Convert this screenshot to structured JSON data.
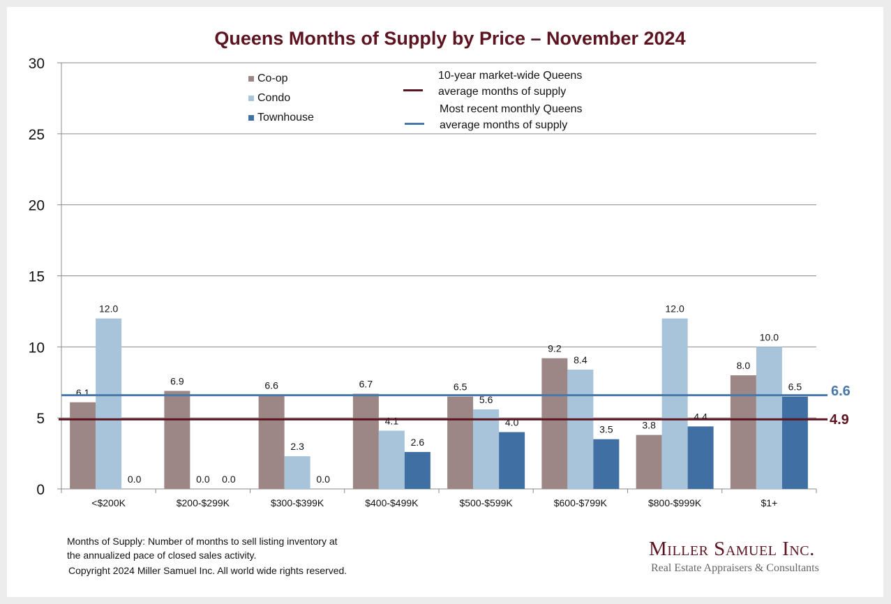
{
  "chart_data": {
    "type": "bar",
    "title": "Queens Months of Supply by Price – November 2024",
    "xlabel": "",
    "ylabel": "",
    "ylim": [
      0,
      30
    ],
    "yticks": [
      "0",
      "5",
      "10",
      "15",
      "20",
      "25",
      "30"
    ],
    "ytick_values": [
      0,
      5,
      10,
      15,
      20,
      25,
      30
    ],
    "grid": true,
    "legend_position": "top-center",
    "categories": [
      "<$200K",
      "$200-$299K",
      "$300-$399K",
      "$400-$499K",
      "$500-$599K",
      "$600-$799K",
      "$800-$999K",
      "$1+"
    ],
    "series": [
      {
        "name": "Co-op",
        "color": "#9c8786",
        "values": [
          6.1,
          6.9,
          6.6,
          6.7,
          6.5,
          9.2,
          3.8,
          8.0
        ],
        "labels": [
          "6.1",
          "6.9",
          "6.6",
          "6.7",
          "6.5",
          "9.2",
          "3.8",
          "8.0"
        ]
      },
      {
        "name": "Condo",
        "color": "#a7c4da",
        "values": [
          12.0,
          0.0,
          2.3,
          4.1,
          5.6,
          8.4,
          12.0,
          10.0
        ],
        "labels": [
          "12.0",
          "0.0",
          "2.3",
          "4.1",
          "5.6",
          "8.4",
          "12.0",
          "10.0"
        ]
      },
      {
        "name": "Townhouse",
        "color": "#3f6fa3",
        "values": [
          0.0,
          0.0,
          0.0,
          2.6,
          4.0,
          3.5,
          4.4,
          6.5
        ],
        "labels": [
          "0.0",
          "0.0",
          "0.0",
          "2.6",
          "4.0",
          "3.5",
          "4.4",
          "6.5"
        ]
      }
    ],
    "reference_lines": [
      {
        "name": "10-year market-wide Queens average months of supply",
        "line1": "10-year market-wide Queens",
        "line2": "average months of supply",
        "value": 4.9,
        "label": "4.9",
        "color": "#5c1420"
      },
      {
        "name": "Most recent monthly Queens average months of supply",
        "line1": "Most recent monthly Queens",
        "line2": "average months of supply",
        "value": 6.6,
        "label": "6.6",
        "color": "#4a78a8"
      }
    ]
  },
  "footer": {
    "note_line1": "Months of Supply:  Number of months to sell listing inventory at",
    "note_line2": "the annualized pace of closed sales activity.",
    "copyright": "Copyright 2024 Miller Samuel Inc.  All world wide rights reserved."
  },
  "logo": {
    "name": "Miller Samuel Inc.",
    "tagline": "Real Estate Appraisers & Consultants"
  }
}
